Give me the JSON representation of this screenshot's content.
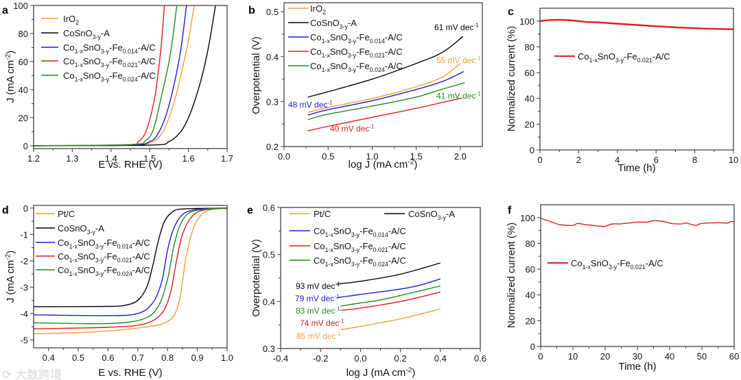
{
  "watermark": "大数跨境",
  "colors": {
    "orange": "#f39c32",
    "black": "#000000",
    "blue": "#1a1adf",
    "red": "#e01b1b",
    "green": "#1f8a1f"
  },
  "chart_data": [
    {
      "panel": "a",
      "type": "line",
      "xlabel": "E vs. RHE (V)",
      "ylabel": "J (mA cm^{-2})",
      "xlim": [
        1.2,
        1.7
      ],
      "ylim": [
        -2,
        100
      ],
      "xticks": [
        1.2,
        1.3,
        1.4,
        1.5,
        1.6,
        1.7
      ],
      "xtick_labels": [
        "1.2",
        "1.3",
        "1.4",
        "1.5",
        "1.6",
        "1.7"
      ],
      "yticks": [
        0,
        20,
        40,
        60,
        80,
        100
      ],
      "ytick_labels": [
        "0",
        "20",
        "40",
        "60",
        "80",
        "100"
      ],
      "legend": "top-left",
      "series": [
        {
          "name": "IrO_{2}",
          "color": "#f39c32",
          "x": [
            1.2,
            1.45,
            1.5,
            1.53,
            1.55,
            1.57,
            1.59,
            1.6,
            1.615
          ],
          "y": [
            0,
            0.5,
            2,
            8,
            20,
            38,
            62,
            75,
            100
          ]
        },
        {
          "name": "CoSnO_{3-y}-A",
          "color": "#000000",
          "x": [
            1.2,
            1.5,
            1.55,
            1.58,
            1.6,
            1.62,
            1.64,
            1.655,
            1.67
          ],
          "y": [
            0,
            0.5,
            3,
            10,
            20,
            35,
            55,
            75,
            100
          ]
        },
        {
          "name": "Co_{1-x}SnO_{3-y}-Fe_{0.014}-A/C",
          "color": "#1a1adf",
          "x": [
            1.2,
            1.45,
            1.5,
            1.52,
            1.54,
            1.56,
            1.58,
            1.595
          ],
          "y": [
            0,
            0.5,
            3,
            8,
            20,
            40,
            68,
            100
          ]
        },
        {
          "name": "Co_{1-x}SnO_{3-y}-Fe_{0.021}-A/C",
          "color": "#e01b1b",
          "x": [
            1.2,
            1.44,
            1.47,
            1.49,
            1.51,
            1.52,
            1.53,
            1.538
          ],
          "y": [
            0,
            0.8,
            3,
            10,
            30,
            48,
            72,
            100
          ]
        },
        {
          "name": "Co_{1-x}SnO_{3-y}-Fe_{0.024}-A/C",
          "color": "#1f8a1f",
          "x": [
            1.2,
            1.45,
            1.49,
            1.51,
            1.53,
            1.55,
            1.56,
            1.57
          ],
          "y": [
            0,
            0.8,
            4,
            12,
            35,
            60,
            78,
            100
          ]
        }
      ],
      "annotations": []
    },
    {
      "panel": "b",
      "type": "line",
      "xlabel": "log J (mA cm^{-2})",
      "ylabel": "Overpotential (V)",
      "xlim": [
        0.0,
        2.25
      ],
      "ylim": [
        0.2,
        0.52
      ],
      "xticks": [
        0,
        0.5,
        1,
        1.5,
        2
      ],
      "xtick_labels": [
        "0.0",
        "0.5",
        "1.0",
        "1.5",
        "2.0"
      ],
      "yticks": [
        0.2,
        0.3,
        0.4,
        0.5
      ],
      "ytick_labels": [
        "0.2",
        "0.3",
        "0.4",
        "0.5"
      ],
      "legend": "top-left",
      "series": [
        {
          "name": "IrO_{2}",
          "color": "#f39c32",
          "x": [
            0.27,
            0.5,
            1.0,
            1.5,
            1.8,
            2.0
          ],
          "y": [
            0.276,
            0.287,
            0.307,
            0.333,
            0.355,
            0.385
          ]
        },
        {
          "name": "CoSnO_{3-y}-A",
          "color": "#000000",
          "x": [
            0.27,
            0.5,
            1.0,
            1.5,
            1.8,
            2.03
          ],
          "y": [
            0.31,
            0.322,
            0.35,
            0.385,
            0.41,
            0.445
          ]
        },
        {
          "name": "Co_{1-x}SnO_{3-y}-Fe_{0.014}-A/C",
          "color": "#1a1adf",
          "x": [
            0.27,
            0.5,
            1.0,
            1.5,
            1.8,
            2.04
          ],
          "y": [
            0.27,
            0.282,
            0.302,
            0.327,
            0.345,
            0.367
          ]
        },
        {
          "name": "Co_{1-x}SnO_{3-y}-Fe_{0.021}-A/C",
          "color": "#e01b1b",
          "x": [
            0.27,
            0.5,
            1.0,
            1.5,
            2.02
          ],
          "y": [
            0.235,
            0.245,
            0.265,
            0.285,
            0.308
          ]
        },
        {
          "name": "Co_{1-x}SnO_{3-y}-Fe_{0.024}-A/C",
          "color": "#1f8a1f",
          "x": [
            0.27,
            0.5,
            1.0,
            1.5,
            1.75,
            2.05
          ],
          "y": [
            0.26,
            0.272,
            0.29,
            0.31,
            0.325,
            0.342
          ]
        }
      ],
      "annotations": [
        {
          "text": "61 mV dec^{-1}",
          "color": "#000000"
        },
        {
          "text": "55 mV dec^{-1}",
          "color": "#f39c32"
        },
        {
          "text": "48 mV dec^{-1}",
          "color": "#1a1adf"
        },
        {
          "text": "41 mV dec^{-1}",
          "color": "#1f8a1f"
        },
        {
          "text": "40 mV dec^{-1}",
          "color": "#e01b1b"
        }
      ]
    },
    {
      "panel": "c",
      "type": "line",
      "xlabel": "Time (h)",
      "ylabel": "Normalized current (%)",
      "xlim": [
        0,
        10
      ],
      "ylim": [
        0,
        110
      ],
      "xticks": [
        0,
        2,
        4,
        6,
        8,
        10
      ],
      "xtick_labels": [
        "0",
        "2",
        "4",
        "6",
        "8",
        "10"
      ],
      "yticks": [
        0,
        20,
        40,
        60,
        80,
        100
      ],
      "ytick_labels": [
        "0",
        "20",
        "40",
        "60",
        "80",
        "100"
      ],
      "legend": "center-left",
      "series": [
        {
          "name": "Co_{1-x}SnO_{3-y}-Fe_{0.021}-A/C",
          "color": "#e01b1b",
          "x": [
            0,
            0.5,
            1,
            1.5,
            2,
            2.4,
            3,
            4,
            5,
            6,
            7,
            8,
            9,
            10
          ],
          "y": [
            100,
            100.8,
            101,
            100.7,
            100,
            99.3,
            99,
            98,
            97,
            96,
            95.2,
            94.5,
            94,
            93.7
          ]
        }
      ],
      "annotations": []
    },
    {
      "panel": "d",
      "type": "line",
      "xlabel": "E vs. RHE (V)",
      "ylabel": "J (mA cm^{-2})",
      "xlim": [
        0.35,
        1.0
      ],
      "ylim": [
        -5.3,
        0.1
      ],
      "xticks": [
        0.4,
        0.5,
        0.6,
        0.7,
        0.8,
        0.9,
        1.0
      ],
      "xtick_labels": [
        "0.4",
        "0.5",
        "0.6",
        "0.7",
        "0.8",
        "0.9",
        "1.0"
      ],
      "yticks": [
        -5,
        -4,
        -3,
        -2,
        -1,
        0
      ],
      "ytick_labels": [
        "-5",
        "-4",
        "-3",
        "-2",
        "-1",
        "0"
      ],
      "legend": "top-left",
      "series": [
        {
          "name": "Pt/C",
          "color": "#f39c32",
          "x": [
            0.35,
            0.5,
            0.6,
            0.7,
            0.78,
            0.82,
            0.84,
            0.85,
            0.86,
            0.88,
            0.9,
            0.93,
            0.97,
            1.0
          ],
          "y": [
            -4.77,
            -4.72,
            -4.66,
            -4.55,
            -4.4,
            -4.1,
            -3.5,
            -2.8,
            -2.0,
            -1.0,
            -0.45,
            -0.12,
            -0.03,
            -0.02
          ]
        },
        {
          "name": "CoSnO_{3-y}-A",
          "color": "#000000",
          "x": [
            0.35,
            0.6,
            0.66,
            0.7,
            0.73,
            0.75,
            0.77,
            0.79,
            0.82,
            0.86,
            1.0
          ],
          "y": [
            -3.74,
            -3.73,
            -3.68,
            -3.5,
            -3.0,
            -2.2,
            -1.2,
            -0.5,
            -0.12,
            -0.03,
            0
          ]
        },
        {
          "name": "Co_{1-x}SnO_{3-y}-Fe_{0.014}-A/C",
          "color": "#1a1adf",
          "x": [
            0.35,
            0.6,
            0.7,
            0.75,
            0.78,
            0.8,
            0.82,
            0.85,
            0.9,
            1.0
          ],
          "y": [
            -4.05,
            -4.08,
            -4.0,
            -3.6,
            -2.8,
            -1.6,
            -0.8,
            -0.25,
            -0.05,
            0
          ]
        },
        {
          "name": "Co_{1-x}SnO_{3-y}-Fe_{0.021}-A/C",
          "color": "#e01b1b",
          "x": [
            0.35,
            0.6,
            0.72,
            0.78,
            0.81,
            0.83,
            0.85,
            0.88,
            0.92,
            1.0
          ],
          "y": [
            -4.58,
            -4.52,
            -4.4,
            -4.0,
            -3.2,
            -2.0,
            -1.0,
            -0.35,
            -0.08,
            0
          ]
        },
        {
          "name": "Co_{1-x}SnO_{3-y}-Fe_{0.024}-A/C",
          "color": "#1f8a1f",
          "x": [
            0.35,
            0.6,
            0.72,
            0.77,
            0.8,
            0.82,
            0.84,
            0.87,
            0.92,
            1.0
          ],
          "y": [
            -4.35,
            -4.38,
            -4.2,
            -3.7,
            -2.7,
            -1.5,
            -0.7,
            -0.2,
            -0.05,
            0
          ]
        }
      ],
      "annotations": []
    },
    {
      "panel": "e",
      "type": "line",
      "xlabel": "log J (mA cm^{-2})",
      "ylabel": "Overpotential (V)",
      "xlim": [
        -0.4,
        0.6
      ],
      "ylim": [
        0.3,
        0.6
      ],
      "xticks": [
        -0.4,
        -0.2,
        0,
        0.2,
        0.4,
        0.6
      ],
      "xtick_labels": [
        "-0.4",
        "-0.2",
        "0.0",
        "0.2",
        "0.4",
        "0.6"
      ],
      "yticks": [
        0.3,
        0.4,
        0.5,
        0.6
      ],
      "ytick_labels": [
        "0.3",
        "0.4",
        "0.5",
        "0.6"
      ],
      "legend": "top",
      "series": [
        {
          "name": "Pt/C",
          "color": "#f39c32",
          "x": [
            -0.1,
            0.0,
            0.2,
            0.4
          ],
          "y": [
            0.34,
            0.347,
            0.363,
            0.384
          ]
        },
        {
          "name": "CoSnO_{3-y}-A",
          "color": "#000000",
          "x": [
            -0.12,
            0.0,
            0.2,
            0.4
          ],
          "y": [
            0.437,
            0.443,
            0.458,
            0.482
          ]
        },
        {
          "name": "Co_{1-x}SnO_{3-y}-Fe_{0.014}-A/C",
          "color": "#1a1adf",
          "x": [
            -0.12,
            0.0,
            0.25,
            0.4
          ],
          "y": [
            0.408,
            0.415,
            0.43,
            0.448
          ]
        },
        {
          "name": "Co_{1-x}SnO_{3-y}-Fe_{0.021}-A/C",
          "color": "#e01b1b",
          "x": [
            -0.1,
            0.0,
            0.2,
            0.4
          ],
          "y": [
            0.381,
            0.386,
            0.4,
            0.42
          ]
        },
        {
          "name": "Co_{1-x}SnO_{3-y}-Fe_{0.024}-A/C",
          "color": "#1f8a1f",
          "x": [
            -0.1,
            0.0,
            0.12,
            0.4
          ],
          "y": [
            0.39,
            0.397,
            0.405,
            0.433
          ]
        }
      ],
      "annotations": [
        {
          "text": "93 mV dec^{-1}",
          "color": "#000000"
        },
        {
          "text": "79 mV dec^{-1}",
          "color": "#1a1adf"
        },
        {
          "text": "83 mV dec^{-1}",
          "color": "#1f8a1f"
        },
        {
          "text": "74 mV dec^{-1}",
          "color": "#e01b1b"
        },
        {
          "text": "85 mV dec^{-1}",
          "color": "#f39c32"
        }
      ]
    },
    {
      "panel": "f",
      "type": "line",
      "xlabel": "Time (h)",
      "ylabel": "Normalized current (%)",
      "xlim": [
        0,
        60
      ],
      "ylim": [
        0,
        110
      ],
      "xticks": [
        0,
        10,
        20,
        30,
        40,
        50,
        60
      ],
      "xtick_labels": [
        "0",
        "10",
        "20",
        "30",
        "40",
        "50",
        "60"
      ],
      "yticks": [
        0,
        20,
        40,
        60,
        80,
        100
      ],
      "ytick_labels": [
        "0",
        "20",
        "40",
        "60",
        "80",
        "100"
      ],
      "legend": "center-left",
      "series": [
        {
          "name": "Co_{1-x}SnO_{3-y}-Fe_{0.021}-A/C",
          "color": "#e01b1b",
          "x": [
            0,
            3,
            6,
            10,
            11.5,
            14,
            18,
            20,
            22,
            25,
            30,
            33,
            35,
            38,
            41,
            44,
            45,
            48,
            50,
            55,
            58,
            59,
            60
          ],
          "y": [
            99.5,
            97,
            94.5,
            94,
            95.5,
            94.5,
            93.5,
            93.2,
            95,
            95.2,
            96.5,
            96.5,
            97.5,
            97,
            95.3,
            95.2,
            95.8,
            94,
            95.5,
            96,
            95.8,
            97,
            96.8
          ]
        }
      ],
      "annotations": []
    }
  ]
}
